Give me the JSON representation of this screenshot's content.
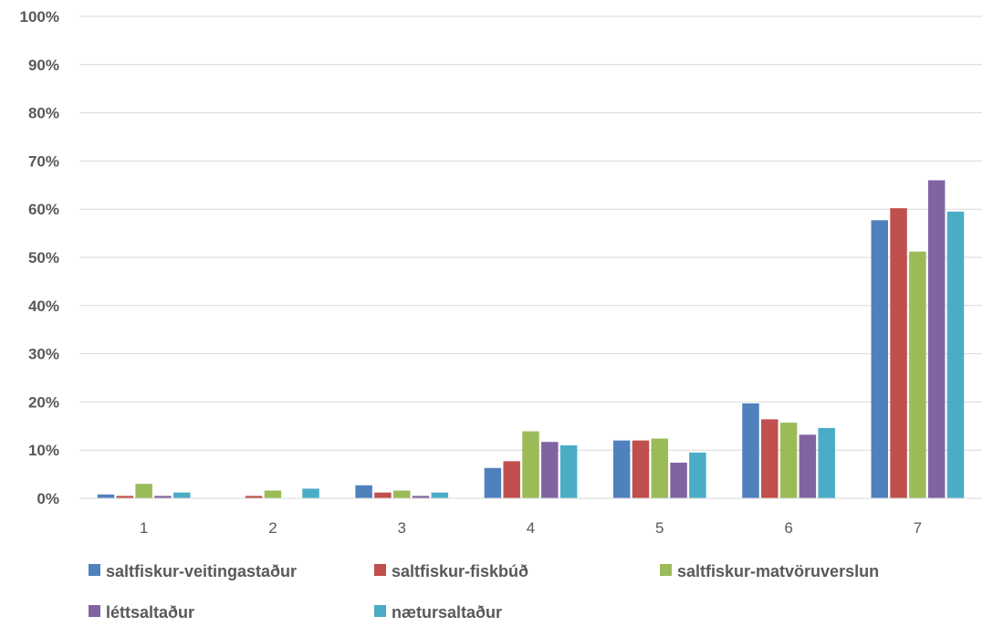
{
  "chart_data": {
    "type": "bar",
    "categories": [
      "1",
      "2",
      "3",
      "4",
      "5",
      "6",
      "7"
    ],
    "series": [
      {
        "name": "saltfiskur-veitingastaður",
        "color": "#4F81BD",
        "values": [
          0.8,
          0.0,
          2.7,
          6.3,
          12.0,
          19.7,
          57.7
        ]
      },
      {
        "name": "saltfiskur-fiskbúð",
        "color": "#C0504D",
        "values": [
          0.5,
          0.5,
          1.2,
          7.7,
          12.0,
          16.4,
          60.2
        ]
      },
      {
        "name": "saltfiskur-matvöruverslun",
        "color": "#9BBB59",
        "values": [
          3.0,
          1.6,
          1.6,
          13.9,
          12.4,
          15.7,
          51.2
        ]
      },
      {
        "name": "léttsaltaður",
        "color": "#8064A2",
        "values": [
          0.5,
          0.0,
          0.5,
          11.7,
          7.4,
          13.2,
          66.0
        ]
      },
      {
        "name": "nætursaltaður",
        "color": "#4BACC6",
        "values": [
          1.2,
          2.0,
          1.2,
          11.0,
          9.5,
          14.6,
          59.5
        ]
      }
    ],
    "yticks": [
      "0%",
      "10%",
      "20%",
      "30%",
      "40%",
      "50%",
      "60%",
      "70%",
      "80%",
      "90%",
      "100%"
    ],
    "ylim": [
      0,
      100
    ],
    "grid": true,
    "legend_position": "bottom"
  }
}
